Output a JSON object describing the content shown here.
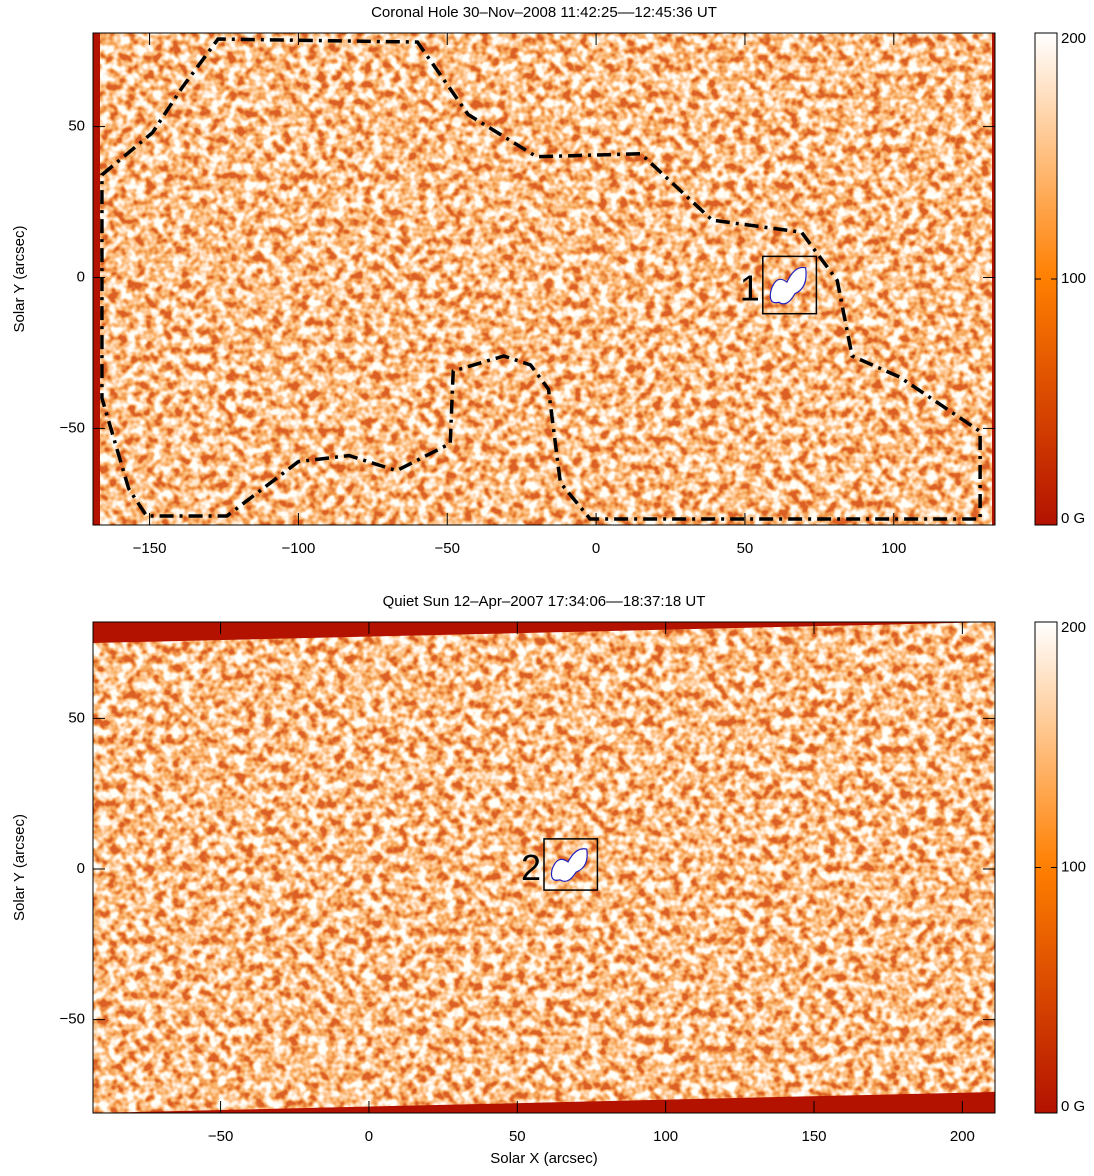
{
  "chart_data": [
    {
      "type": "image",
      "title": "Coronal Hole  30–Nov–2008  11:42:25––12:45:36 UT",
      "ylabel": "Solar Y (arcsec)",
      "xlim": [
        -169,
        134
      ],
      "ylim": [
        -82,
        81
      ],
      "xticks": [
        {
          "value": -150,
          "label": "−150"
        },
        {
          "value": -100,
          "label": "−100"
        },
        {
          "value": -50,
          "label": "−50"
        },
        0,
        50,
        100
      ],
      "yticks": [
        {
          "value": -50,
          "label": "−50"
        },
        0,
        50
      ],
      "clim": [
        0,
        200
      ],
      "cticks": [
        {
          "value": 0,
          "label": "0 G"
        },
        100,
        200
      ],
      "colormap": [
        "#b31200",
        "#ff7f00",
        "#ffffff"
      ],
      "region": {
        "x": [
          -166,
          -149,
          -139,
          -127,
          -60,
          -43,
          -20,
          15,
          39,
          69,
          78,
          81,
          86,
          102,
          129,
          129,
          -2,
          -12,
          -16,
          -22,
          -31,
          -48,
          -49,
          -67,
          -83,
          -100,
          -124,
          -151,
          -157,
          -166
        ],
        "y": [
          34,
          48,
          63,
          79,
          78,
          54,
          40,
          41,
          19,
          15,
          3,
          -1,
          -26,
          -33,
          -51,
          -80,
          -80,
          -68,
          -37,
          -29,
          -26,
          -31,
          -55,
          -64,
          -59,
          -61,
          -79,
          -79,
          -70,
          -40
        ]
      },
      "box": {
        "label": "1",
        "x": [
          56,
          74
        ],
        "y": [
          -12,
          7
        ]
      }
    },
    {
      "type": "image",
      "title": "Quiet Sun  12–Apr–2007 17:34:06––18:37:18 UT",
      "xlabel": "Solar X (arcsec)",
      "ylabel": "Solar Y (arcsec)",
      "xlim": [
        -93,
        211
      ],
      "ylim": [
        -81,
        82
      ],
      "xticks": [
        {
          "value": -50,
          "label": "−50"
        },
        0,
        50,
        100,
        150,
        200
      ],
      "yticks": [
        {
          "value": -50,
          "label": "−50"
        },
        0,
        50
      ],
      "clim": [
        0,
        200
      ],
      "cticks": [
        {
          "value": 0,
          "label": "0 G"
        },
        100,
        200
      ],
      "colormap": [
        "#b31200",
        "#ff7f00",
        "#ffffff"
      ],
      "box": {
        "label": "2",
        "x": [
          59,
          77
        ],
        "y": [
          -7,
          10
        ]
      }
    }
  ]
}
